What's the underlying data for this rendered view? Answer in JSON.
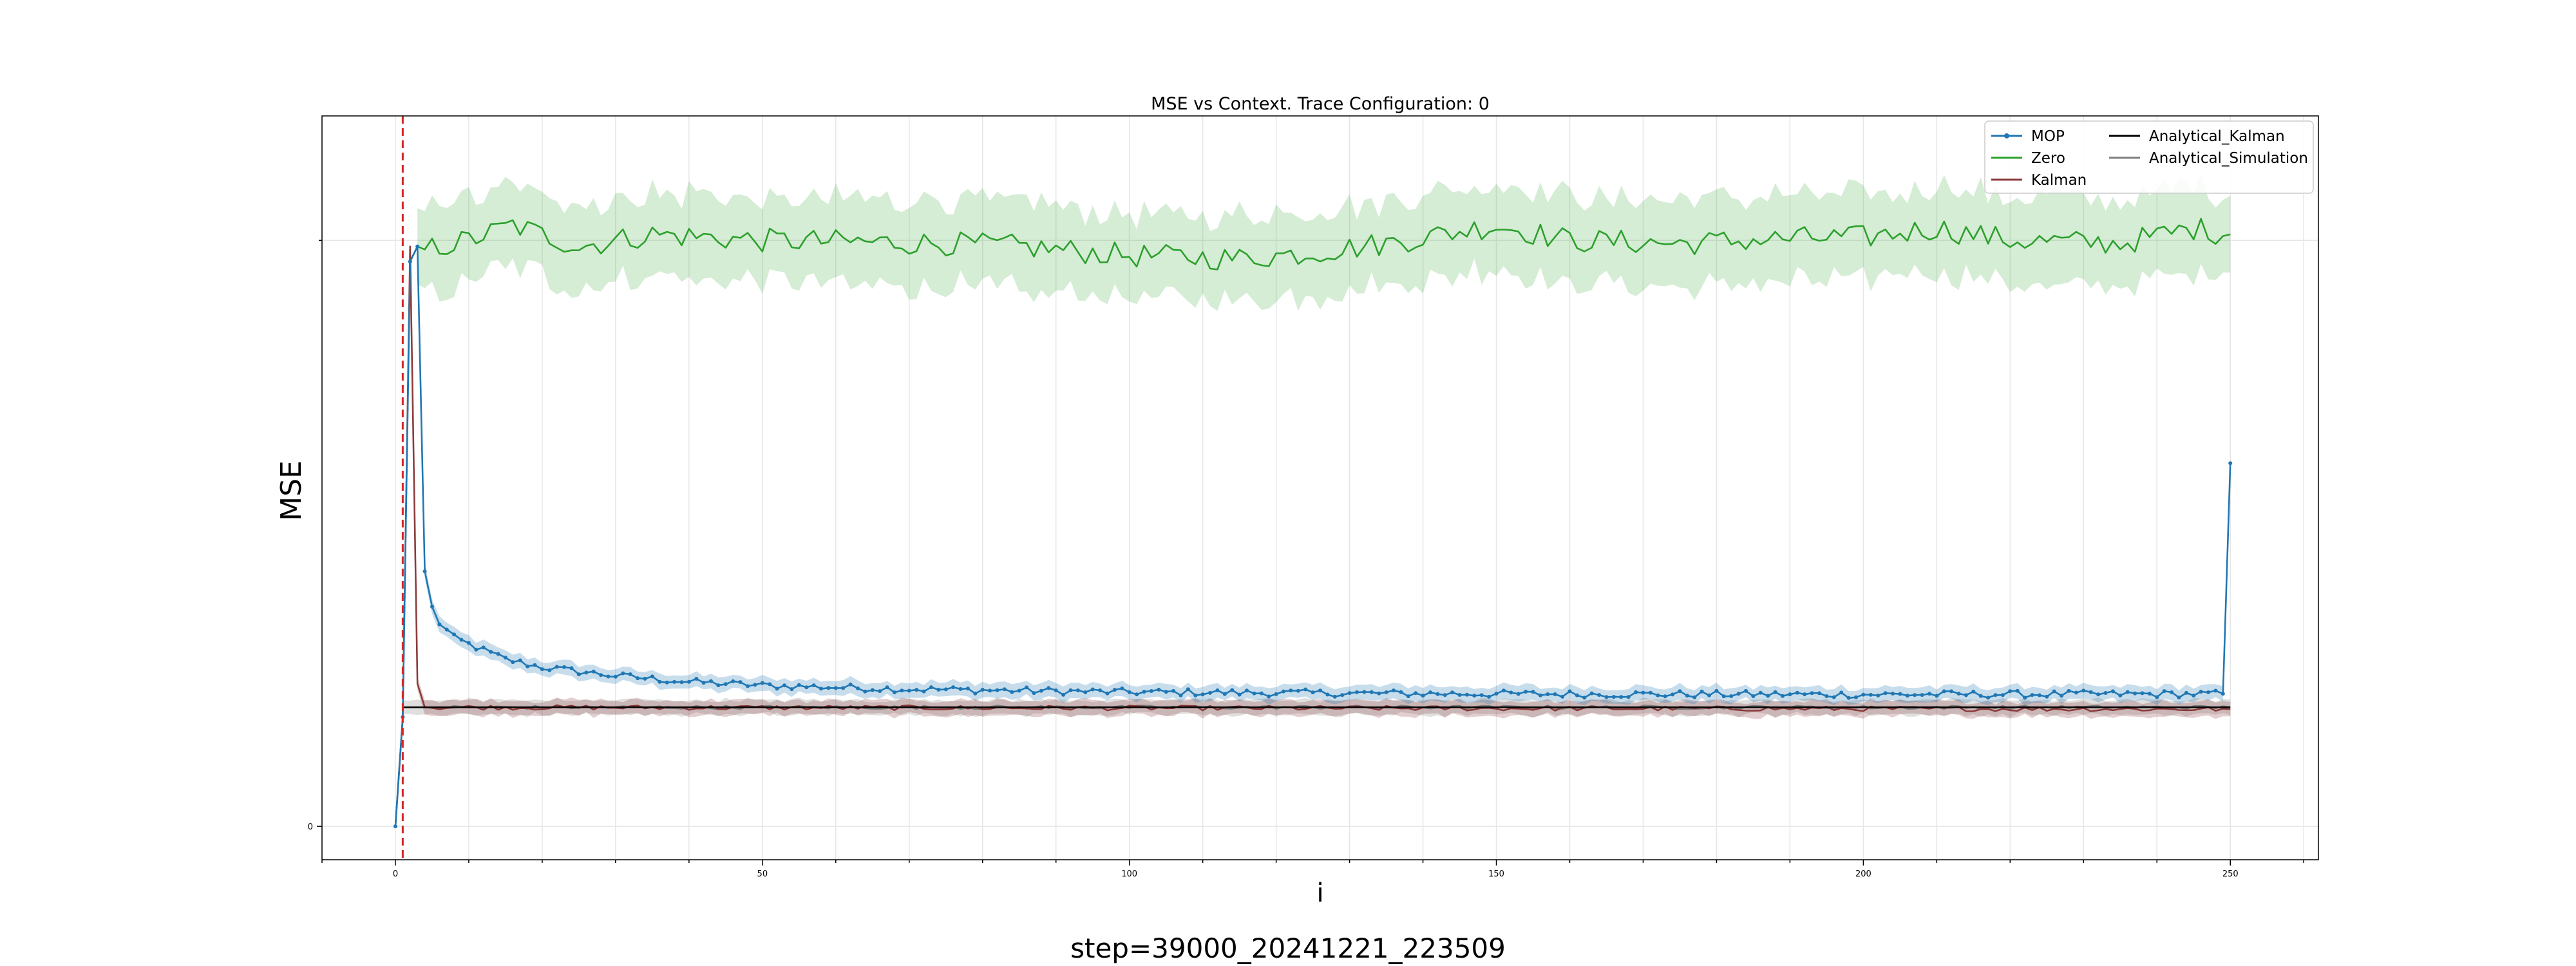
{
  "chart_data": {
    "type": "line",
    "title": "MSE vs Context. Trace Configuration: 0",
    "xlabel": "i",
    "ylabel": "MSE",
    "footer": "step=39000_20241221_223509",
    "xlim": [
      -10,
      262
    ],
    "ylim": [
      -0.055,
      1.17
    ],
    "x_ticks": [
      0,
      50,
      100,
      150,
      200,
      250
    ],
    "y_ticks": [
      0
    ],
    "y_gridlines": [
      0,
      0.965
    ],
    "vertical_marker": {
      "x": 1,
      "color": "#d62728",
      "style": "dashed"
    },
    "grid": true,
    "legend_position": "top-right",
    "colors": {
      "MOP": "#1f77b4",
      "Zero": "#2ca02c",
      "Kalman": "#8c3b3b",
      "Analytical_Kalman": "#000000",
      "Analytical_Simulation": "#7f7f7f"
    },
    "series": [
      {
        "name": "MOP",
        "markers": true,
        "band": 0.012,
        "keypoints": [
          [
            0,
            0
          ],
          [
            1,
            0.18
          ],
          [
            2,
            0.93
          ],
          [
            3,
            0.955
          ],
          [
            4,
            0.42
          ],
          [
            5,
            0.36
          ],
          [
            6,
            0.335
          ],
          [
            8,
            0.31
          ],
          [
            10,
            0.3
          ],
          [
            15,
            0.275
          ],
          [
            20,
            0.262
          ],
          [
            30,
            0.248
          ],
          [
            40,
            0.238
          ],
          [
            50,
            0.232
          ],
          [
            70,
            0.226
          ],
          [
            100,
            0.221
          ],
          [
            150,
            0.218
          ],
          [
            200,
            0.217
          ],
          [
            249,
            0.218
          ],
          [
            250,
            0.598
          ]
        ]
      },
      {
        "name": "Zero",
        "markers": false,
        "band": 0.07,
        "keypoints": [
          [
            2,
            0.93
          ],
          [
            3,
            0.955
          ],
          [
            4,
            0.95
          ],
          [
            10,
            0.965
          ],
          [
            16,
            0.99
          ],
          [
            25,
            0.955
          ],
          [
            35,
            0.975
          ],
          [
            50,
            0.965
          ],
          [
            75,
            0.96
          ],
          [
            85,
            0.955
          ],
          [
            100,
            0.94
          ],
          [
            115,
            0.935
          ],
          [
            125,
            0.945
          ],
          [
            135,
            0.96
          ],
          [
            150,
            0.99
          ],
          [
            160,
            0.965
          ],
          [
            175,
            0.96
          ],
          [
            190,
            0.968
          ],
          [
            200,
            0.97
          ],
          [
            210,
            0.985
          ],
          [
            220,
            0.965
          ],
          [
            235,
            0.96
          ],
          [
            245,
            0.985
          ],
          [
            250,
            0.975
          ]
        ]
      },
      {
        "name": "Kalman",
        "markers": false,
        "band": 0.012,
        "keypoints": [
          [
            0,
            0
          ],
          [
            1,
            0.18
          ],
          [
            2,
            0.955
          ],
          [
            3,
            0.235
          ],
          [
            4,
            0.196
          ],
          [
            250,
            0.193
          ]
        ]
      },
      {
        "name": "Analytical_Kalman",
        "markers": false,
        "band": 0,
        "keypoints": [
          [
            1,
            0.196
          ],
          [
            250,
            0.196
          ]
        ]
      },
      {
        "name": "Analytical_Simulation",
        "markers": false,
        "band": 0.012,
        "keypoints": [
          [
            1,
            0.196
          ],
          [
            250,
            0.196
          ]
        ]
      }
    ]
  }
}
